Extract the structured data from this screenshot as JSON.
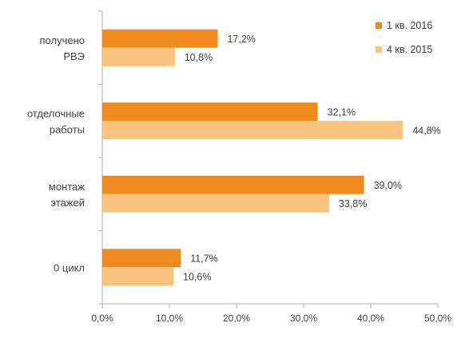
{
  "chart_data": {
    "type": "bar",
    "orientation": "horizontal",
    "categories": [
      [
        "получено",
        "РВЭ"
      ],
      [
        "отделочные",
        "работы"
      ],
      [
        "монтаж",
        "этажей"
      ],
      [
        "0 цикл"
      ]
    ],
    "series": [
      {
        "name": "1 кв. 2016",
        "color": "#EE8A1E",
        "values": [
          17.2,
          32.1,
          39.0,
          11.7
        ],
        "labels": [
          "17,2%",
          "32,1%",
          "39,0%",
          "11,7%"
        ]
      },
      {
        "name": "4 кв. 2015",
        "color": "#F8C37E",
        "values": [
          10.8,
          44.8,
          33.8,
          10.6
        ],
        "labels": [
          "10,8%",
          "44,8%",
          "33,8%",
          "10,6%"
        ]
      }
    ],
    "xlim": [
      0,
      50
    ],
    "xticks": [
      0,
      10,
      20,
      30,
      40,
      50
    ],
    "xtick_labels": [
      "0,0%",
      "10,0%",
      "20,0%",
      "30,0%",
      "40,0%",
      "50,0%"
    ],
    "title": "",
    "xlabel": "",
    "ylabel": "",
    "grid": false,
    "legend": "top-right",
    "axis_color": "#B0B0B0"
  }
}
